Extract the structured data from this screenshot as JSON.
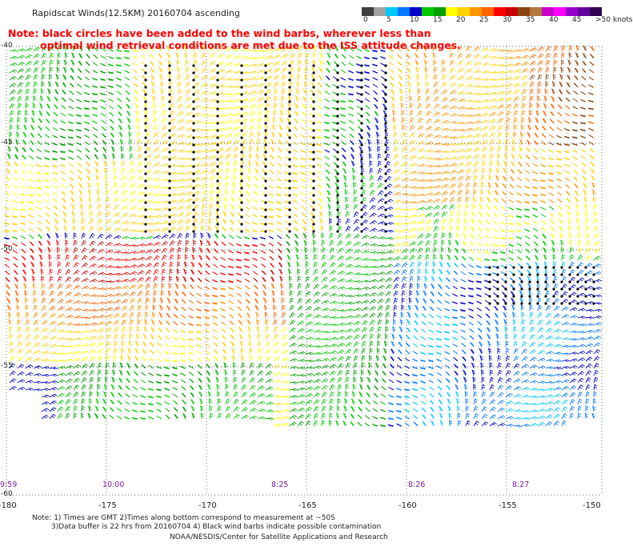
{
  "title": "Rapidscat Winds(12.5KM) 20160704 ascending",
  "note": {
    "line1": "Note: black circles have been added to the wind barbs, wherever less than",
    "line2": "optimal wind retrieval conditions are met due to the ISS attitude changes."
  },
  "color_scale": {
    "labels": [
      "0",
      "5",
      "10",
      "15",
      "20",
      "25",
      "30",
      "35",
      "40",
      "45",
      ">50 knots"
    ],
    "colors": [
      "#404040",
      "#a0a0a0",
      "#00c8ff",
      "#0078ff",
      "#0000c8",
      "#00c800",
      "#00a000",
      "#ffff00",
      "#ffd200",
      "#ff9600",
      "#ff6400",
      "#ff0000",
      "#c80000",
      "#8b4513",
      "#b4783c",
      "#c800c8",
      "#ff00ff",
      "#9600c8",
      "#6400a0",
      "#320050"
    ]
  },
  "axes": {
    "lat_labels": [
      "-40",
      "-45",
      "-50",
      "-55",
      "-60"
    ],
    "lon_labels": [
      "-180",
      "-175",
      "-170",
      "-165",
      "-160",
      "-155",
      "-150"
    ]
  },
  "time_labels": [
    "9:59",
    "10:00",
    "8:25",
    "8:26",
    "8:27"
  ],
  "footer": {
    "line1": "Note: 1) Times are GMT 2)Times along bottom correspond to measurement at ~50S",
    "line2": "3)Data buffer is 22 hrs from 20160704 4) Black wind barbs indicate possible contamination",
    "line3": "NOAA/NESDIS/Center for Satellite Applications and Research"
  }
}
